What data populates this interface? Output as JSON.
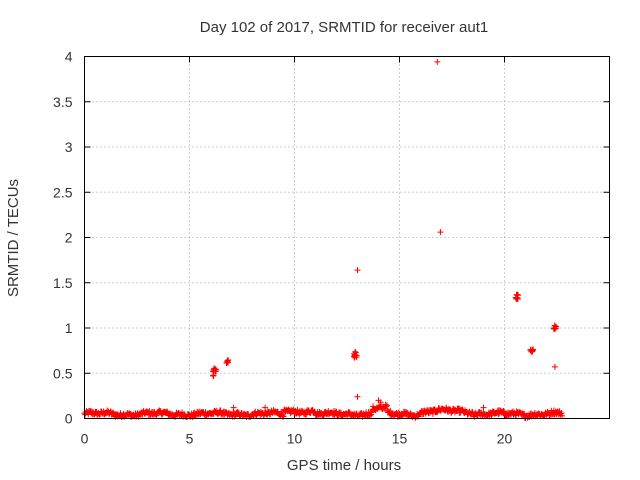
{
  "chart_data": {
    "type": "scatter",
    "title": "Day 102 of 2017, SRMTID for receiver aut1",
    "xlabel": "GPS time / hours",
    "ylabel": "SRMTID / TECUs",
    "xlim": [
      0,
      25
    ],
    "ylim": [
      0,
      4
    ],
    "x_ticks": [
      0,
      5,
      10,
      15,
      20
    ],
    "y_ticks": [
      0,
      0.5,
      1,
      1.5,
      2,
      2.5,
      3,
      3.5,
      4
    ],
    "x_tick_labels": [
      "0",
      "5",
      "10",
      "15",
      "20"
    ],
    "y_tick_labels": [
      "0",
      "0.5",
      "1",
      "1.5",
      "2",
      "2.5",
      "3",
      "3.5",
      "4"
    ],
    "grid": true,
    "marker": "plus",
    "series": [
      {
        "name": "SRMTID",
        "color": "#ff0000",
        "baseline": {
          "x_start": 0,
          "x_end": 22.75,
          "step": 0.03,
          "level": 0.05
        },
        "clusters": [
          {
            "x": 6.2,
            "y": 0.52,
            "spread_x": 0.08,
            "spread_y": 0.05,
            "count": 14
          },
          {
            "x": 6.8,
            "y": 0.63,
            "spread_x": 0.07,
            "spread_y": 0.02,
            "count": 8
          },
          {
            "x": 12.9,
            "y": 0.7,
            "spread_x": 0.07,
            "spread_y": 0.04,
            "count": 10
          },
          {
            "x": 20.6,
            "y": 1.34,
            "spread_x": 0.07,
            "spread_y": 0.03,
            "count": 10
          },
          {
            "x": 21.3,
            "y": 0.75,
            "spread_x": 0.07,
            "spread_y": 0.02,
            "count": 8
          },
          {
            "x": 22.4,
            "y": 1.01,
            "spread_x": 0.07,
            "spread_y": 0.02,
            "count": 8
          }
        ],
        "outliers": [
          {
            "x": 16.8,
            "y": 3.94
          },
          {
            "x": 16.95,
            "y": 2.06
          },
          {
            "x": 13.0,
            "y": 1.64
          },
          {
            "x": 13.0,
            "y": 0.24
          },
          {
            "x": 22.4,
            "y": 0.57
          },
          {
            "x": 7.1,
            "y": 0.12
          },
          {
            "x": 8.6,
            "y": 0.12
          },
          {
            "x": 14.1,
            "y": 0.18
          },
          {
            "x": 14.0,
            "y": 0.2
          },
          {
            "x": 19.0,
            "y": 0.12
          }
        ]
      }
    ]
  }
}
